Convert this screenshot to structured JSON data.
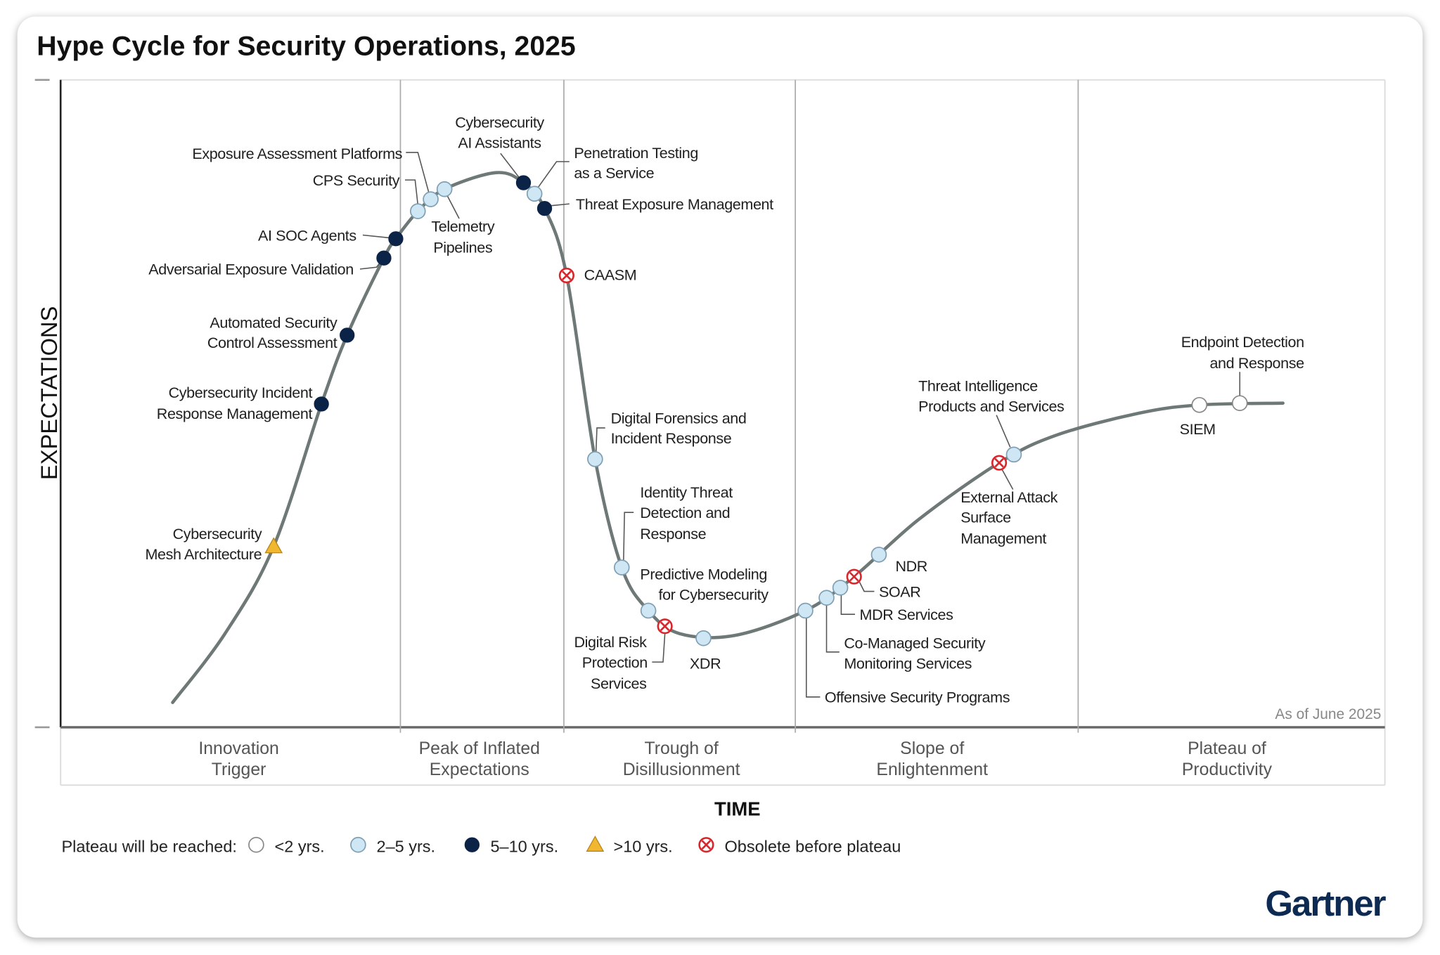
{
  "chart_data": {
    "type": "hype-cycle",
    "title": "Hype Cycle for Security Operations, 2025",
    "xlabel": "TIME",
    "ylabel": "EXPECTATIONS",
    "as_of": "As of June 2025",
    "brand": "Gartner",
    "phases": [
      {
        "lines": [
          "Innovation",
          "Trigger"
        ]
      },
      {
        "lines": [
          "Peak of Inflated",
          "Expectations"
        ]
      },
      {
        "lines": [
          "Trough of",
          "Disillusionment"
        ]
      },
      {
        "lines": [
          "Slope of",
          "Enlightenment"
        ]
      },
      {
        "lines": [
          "Plateau of",
          "Productivity"
        ]
      }
    ],
    "legend": {
      "title": "Plateau will be reached:",
      "items": [
        {
          "key": "lt2",
          "label": "<2 yrs."
        },
        {
          "key": "2to5",
          "label": "2–5 yrs."
        },
        {
          "key": "5to10",
          "label": "5–10 yrs."
        },
        {
          "key": "gt10",
          "label": ">10 yrs."
        },
        {
          "key": "obsolete",
          "label": "Obsolete before plateau"
        }
      ]
    },
    "colors": {
      "dark": "#0b2346",
      "light": "#cfe6f4",
      "curve": "#6e7876",
      "obsolete": "#d9262c",
      "triangle": "#f2b731"
    },
    "innovations": [
      {
        "name": "Cybersecurity Mesh Architecture",
        "lines": [
          "Cybersecurity",
          "Mesh Architecture"
        ],
        "phase": "Innovation Trigger",
        "plateau": "gt10"
      },
      {
        "name": "Cybersecurity Incident Response Management",
        "lines": [
          "Cybersecurity Incident",
          "Response Management"
        ],
        "phase": "Innovation Trigger",
        "plateau": "5to10"
      },
      {
        "name": "Automated Security Control Assessment",
        "lines": [
          "Automated Security",
          "Control Assessment"
        ],
        "phase": "Innovation Trigger",
        "plateau": "5to10"
      },
      {
        "name": "Adversarial Exposure Validation",
        "lines": [
          "Adversarial Exposure Validation"
        ],
        "phase": "Innovation Trigger",
        "plateau": "5to10"
      },
      {
        "name": "AI SOC Agents",
        "lines": [
          "AI SOC Agents"
        ],
        "phase": "Innovation Trigger",
        "plateau": "5to10"
      },
      {
        "name": "CPS Security",
        "lines": [
          "CPS Security"
        ],
        "phase": "Peak of Inflated Expectations",
        "plateau": "2to5"
      },
      {
        "name": "Exposure Assessment Platforms",
        "lines": [
          "Exposure Assessment Platforms"
        ],
        "phase": "Peak of Inflated Expectations",
        "plateau": "2to5"
      },
      {
        "name": "Telemetry Pipelines",
        "lines": [
          "Telemetry",
          "Pipelines"
        ],
        "phase": "Peak of Inflated Expectations",
        "plateau": "2to5"
      },
      {
        "name": "Cybersecurity AI Assistants",
        "lines": [
          "Cybersecurity",
          "AI Assistants"
        ],
        "phase": "Peak of Inflated Expectations",
        "plateau": "5to10"
      },
      {
        "name": "Penetration Testing as a Service",
        "lines": [
          "Penetration Testing",
          "as a Service"
        ],
        "phase": "Peak of Inflated Expectations",
        "plateau": "2to5"
      },
      {
        "name": "Threat Exposure Management",
        "lines": [
          "Threat Exposure Management"
        ],
        "phase": "Peak of Inflated Expectations",
        "plateau": "5to10"
      },
      {
        "name": "CAASM",
        "lines": [
          "CAASM"
        ],
        "phase": "Trough of Disillusionment",
        "plateau": "obsolete"
      },
      {
        "name": "Digital Forensics and Incident Response",
        "lines": [
          "Digital Forensics and",
          "Incident Response"
        ],
        "phase": "Trough of Disillusionment",
        "plateau": "2to5"
      },
      {
        "name": "Identity Threat Detection and Response",
        "lines": [
          "Identity Threat",
          "Detection and",
          "Response"
        ],
        "phase": "Trough of Disillusionment",
        "plateau": "2to5"
      },
      {
        "name": "Predictive Modeling for Cybersecurity",
        "lines": [
          "Predictive Modeling",
          "for Cybersecurity"
        ],
        "phase": "Trough of Disillusionment",
        "plateau": "2to5"
      },
      {
        "name": "Digital Risk Protection Services",
        "lines": [
          "Digital Risk",
          "Protection",
          "Services"
        ],
        "phase": "Trough of Disillusionment",
        "plateau": "obsolete"
      },
      {
        "name": "XDR",
        "lines": [
          "XDR"
        ],
        "phase": "Trough of Disillusionment",
        "plateau": "2to5"
      },
      {
        "name": "Offensive Security Programs",
        "lines": [
          "Offensive Security Programs"
        ],
        "phase": "Slope of Enlightenment",
        "plateau": "2to5"
      },
      {
        "name": "Co-Managed Security Monitoring Services",
        "lines": [
          "Co-Managed Security",
          "Monitoring Services"
        ],
        "phase": "Slope of Enlightenment",
        "plateau": "2to5"
      },
      {
        "name": "MDR Services",
        "lines": [
          "MDR Services"
        ],
        "phase": "Slope of Enlightenment",
        "plateau": "2to5"
      },
      {
        "name": "SOAR",
        "lines": [
          "SOAR"
        ],
        "phase": "Slope of Enlightenment",
        "plateau": "obsolete"
      },
      {
        "name": "NDR",
        "lines": [
          "NDR"
        ],
        "phase": "Slope of Enlightenment",
        "plateau": "2to5"
      },
      {
        "name": "External Attack Surface Management",
        "lines": [
          "External Attack",
          "Surface",
          "Management"
        ],
        "phase": "Slope of Enlightenment",
        "plateau": "obsolete"
      },
      {
        "name": "Threat Intelligence Products and Services",
        "lines": [
          "Threat Intelligence",
          "Products and Services"
        ],
        "phase": "Slope of Enlightenment",
        "plateau": "2to5"
      },
      {
        "name": "SIEM",
        "lines": [
          "SIEM"
        ],
        "phase": "Plateau of Productivity",
        "plateau": "lt2"
      },
      {
        "name": "Endpoint Detection and Response",
        "lines": [
          "Endpoint Detection",
          "and Response"
        ],
        "phase": "Plateau of Productivity",
        "plateau": "lt2"
      }
    ]
  }
}
